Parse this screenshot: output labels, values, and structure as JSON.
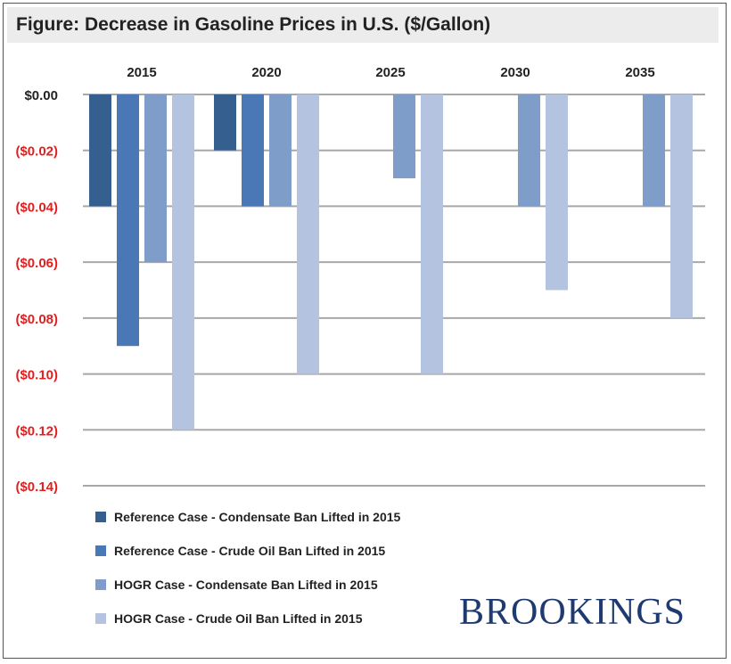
{
  "title": "Figure: Decrease in Gasoline Prices in U.S. ($/Gallon)",
  "brand": "BROOKINGS",
  "colors": {
    "axis_zero_label": "#222222",
    "axis_negative_label": "#e02020",
    "gridline": "#a8a8a8"
  },
  "chart_data": {
    "type": "bar",
    "categories": [
      "2015",
      "2020",
      "2025",
      "2030",
      "2035"
    ],
    "category_axis_position": "top",
    "ylim": [
      -0.14,
      0
    ],
    "yticks": [
      0,
      -0.02,
      -0.04,
      -0.06,
      -0.08,
      -0.1,
      -0.12,
      -0.14
    ],
    "ytick_labels": [
      "$0.00",
      "($0.02)",
      "($0.04)",
      "($0.06)",
      "($0.08)",
      "($0.10)",
      "($0.12)",
      "($0.14)"
    ],
    "grid": true,
    "legend_position": "bottom-left",
    "series": [
      {
        "name": "Reference Case - Condensate Ban Lifted in 2015",
        "color": "#355f8e",
        "values": [
          -0.04,
          -0.02,
          null,
          null,
          null
        ]
      },
      {
        "name": "Reference Case - Crude Oil Ban Lifted in 2015",
        "color": "#4a78b6",
        "values": [
          -0.09,
          -0.04,
          null,
          null,
          null
        ]
      },
      {
        "name": "HOGR Case - Condensate Ban Lifted in 2015",
        "color": "#7f9dc9",
        "values": [
          -0.06,
          -0.04,
          -0.03,
          -0.04,
          -0.04
        ]
      },
      {
        "name": "HOGR Case - Crude Oil Ban Lifted in 2015",
        "color": "#b4c3df",
        "values": [
          -0.12,
          -0.1,
          -0.1,
          -0.07,
          -0.08
        ]
      }
    ]
  }
}
